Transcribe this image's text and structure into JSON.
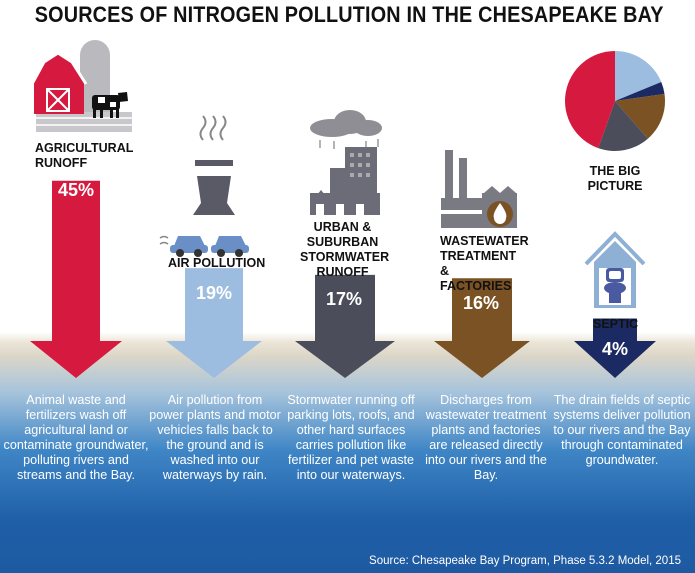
{
  "title": "SOURCES OF NITROGEN POLLUTION IN THE CHESAPEAKE BAY",
  "chart_data": {
    "type": "bar",
    "categories": [
      "AGRICULTURAL RUNOFF",
      "AIR POLLUTION",
      "URBAN & SUBURBAN STORMWATER RUNOFF",
      "WASTEWATER TREATMENT & FACTORIES",
      "SEPTIC"
    ],
    "values": [
      45,
      19,
      17,
      16,
      4
    ],
    "value_labels": [
      "45%",
      "19%",
      "17%",
      "16%",
      "4%"
    ],
    "colors": [
      "#d6193f",
      "#9dbde0",
      "#4c4d5b",
      "#7a5223",
      "#1c2a63"
    ],
    "descriptions": [
      "Animal waste and fertilizers wash off agricultural land or contaminate groundwater, polluting rivers and streams and the Bay.",
      "Air pollution from power plants and motor vehicles falls back to the ground and is washed into our waterways by rain.",
      "Stormwater running off parking lots, roofs, and other hard surfaces carries pollution like fertilizer and pet waste into our waterways.",
      "Discharges from wastewater treatment plants and factories are released directly into our rivers and the Bay.",
      "The drain fields of septic systems deliver pollution to our rivers and the Bay through contaminated groundwater."
    ],
    "pie_title": "THE BIG PICTURE"
  },
  "source": "Source: Chesapeake Bay Program, Phase 5.3.2 Model, 2015",
  "icons": [
    "barn-icon",
    "cow-icon",
    "power-plant-icon",
    "car-icon",
    "city-icon",
    "rain-cloud-icon",
    "factory-icon",
    "water-drop-icon",
    "house-icon",
    "toilet-icon"
  ]
}
